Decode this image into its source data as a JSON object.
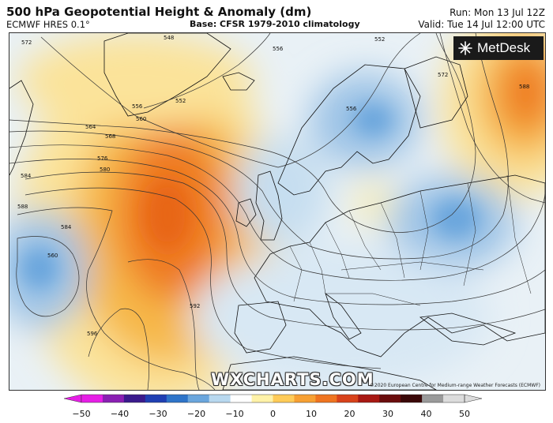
{
  "header": {
    "title": "500 hPa Geopotential Height & Anomaly (dm)",
    "model": "ECMWF HRES 0.1°",
    "base": "Base: CFSR 1979-2010 climatology",
    "run": "Run: Mon 13 Jul 12Z",
    "valid": "Valid: Tue 14 Jul 12:00 UTC"
  },
  "logo": {
    "name": "MetDesk",
    "icon": "metdesk-star-logo"
  },
  "watermark": "WXCHARTS.COM",
  "copyright": "©2020 European Centre for Medium-range Weather Forecasts (ECMWF)",
  "contour_labels": [
    "572",
    "548",
    "556",
    "552",
    "564",
    "560",
    "568",
    "556",
    "552",
    "576",
    "580",
    "584",
    "588",
    "584",
    "560",
    "592",
    "596",
    "556",
    "572",
    "588"
  ],
  "colorbar": {
    "ticks": [
      "−50",
      "−40",
      "−30",
      "−20",
      "−10",
      "0",
      "10",
      "20",
      "30",
      "40",
      "50"
    ],
    "colors": [
      "#e61ee6",
      "#8a1fb3",
      "#3a1a8c",
      "#1f3fb3",
      "#2e74c9",
      "#6aa6dd",
      "#b8d8ef",
      "#ffffff",
      "#fff2a8",
      "#ffcb58",
      "#f7a033",
      "#ef7420",
      "#d8421a",
      "#a81812",
      "#6a0c0c",
      "#3a0808",
      "#9a9a9a",
      "#dcdcdc"
    ]
  },
  "colors": {
    "neg_strong": "#6aa6dd",
    "neg_light": "#c6def0",
    "neutral": "#f4f6f4",
    "pos_light": "#fbe39a",
    "pos_mid": "#f6b84a",
    "pos_strong": "#ef7a22"
  }
}
